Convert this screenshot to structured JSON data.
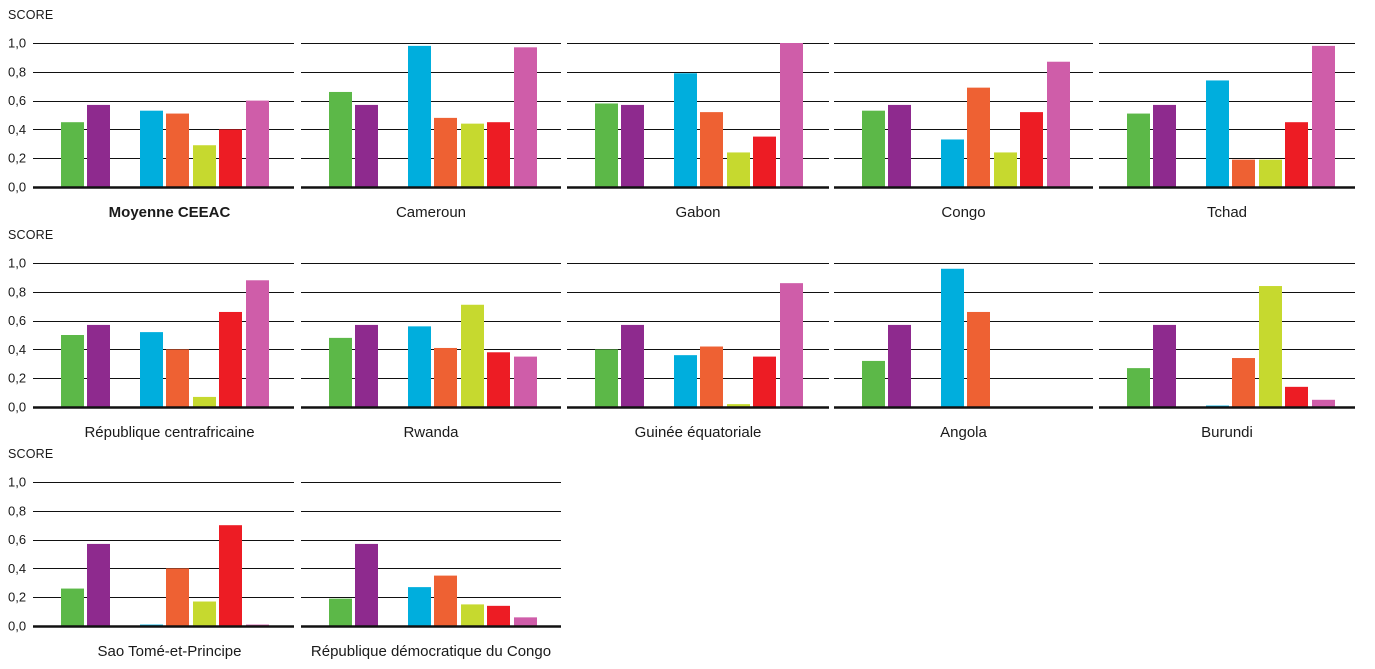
{
  "chart_data": {
    "type": "bar",
    "ylabel": "SCORE",
    "ylim": [
      0,
      1.0
    ],
    "yticks": [
      "0,0",
      "0,2",
      "0,4",
      "0,6",
      "0,8",
      "1,0"
    ],
    "grid": true,
    "bar_colors": [
      "#5cb848",
      "#8e2a8e",
      "#1f2a36",
      "#00aedd",
      "#ee6133",
      "#c6d92f",
      "#ed1c24",
      "#cf5da9"
    ],
    "panels": [
      {
        "title": "Moyenne CEEAC",
        "bold": true,
        "values": [
          0.45,
          0.57,
          0.0,
          0.53,
          0.51,
          0.29,
          0.4,
          0.6
        ]
      },
      {
        "title": "Cameroun",
        "values": [
          0.66,
          0.57,
          0.0,
          0.98,
          0.48,
          0.44,
          0.45,
          0.97
        ]
      },
      {
        "title": "Gabon",
        "values": [
          0.58,
          0.57,
          0.0,
          0.79,
          0.52,
          0.24,
          0.35,
          1.0
        ]
      },
      {
        "title": "Congo",
        "values": [
          0.53,
          0.57,
          0.0,
          0.33,
          0.69,
          0.24,
          0.52,
          0.87
        ]
      },
      {
        "title": "Tchad",
        "values": [
          0.51,
          0.57,
          0.0,
          0.74,
          0.19,
          0.19,
          0.45,
          0.98
        ]
      },
      {
        "title": "République centrafricaine",
        "values": [
          0.5,
          0.57,
          0.0,
          0.52,
          0.4,
          0.07,
          0.66,
          0.88
        ]
      },
      {
        "title": "Rwanda",
        "values": [
          0.48,
          0.57,
          0.0,
          0.56,
          0.41,
          0.71,
          0.38,
          0.35
        ]
      },
      {
        "title": "Guinée équatoriale",
        "values": [
          0.4,
          0.57,
          0.0,
          0.36,
          0.42,
          0.02,
          0.35,
          0.86
        ]
      },
      {
        "title": "Angola",
        "values": [
          0.32,
          0.57,
          0.0,
          0.96,
          0.66,
          0.0,
          0.0,
          0.0
        ]
      },
      {
        "title": "Burundi",
        "values": [
          0.27,
          0.57,
          0.0,
          0.01,
          0.34,
          0.84,
          0.14,
          0.05
        ]
      },
      {
        "title": "Sao Tomé-et-Principe",
        "values": [
          0.26,
          0.57,
          0.0,
          0.01,
          0.4,
          0.17,
          0.7,
          0.01
        ]
      },
      {
        "title": "République démocratique du Congo",
        "values": [
          0.19,
          0.57,
          0.0,
          0.27,
          0.35,
          0.15,
          0.14,
          0.06
        ]
      }
    ]
  }
}
